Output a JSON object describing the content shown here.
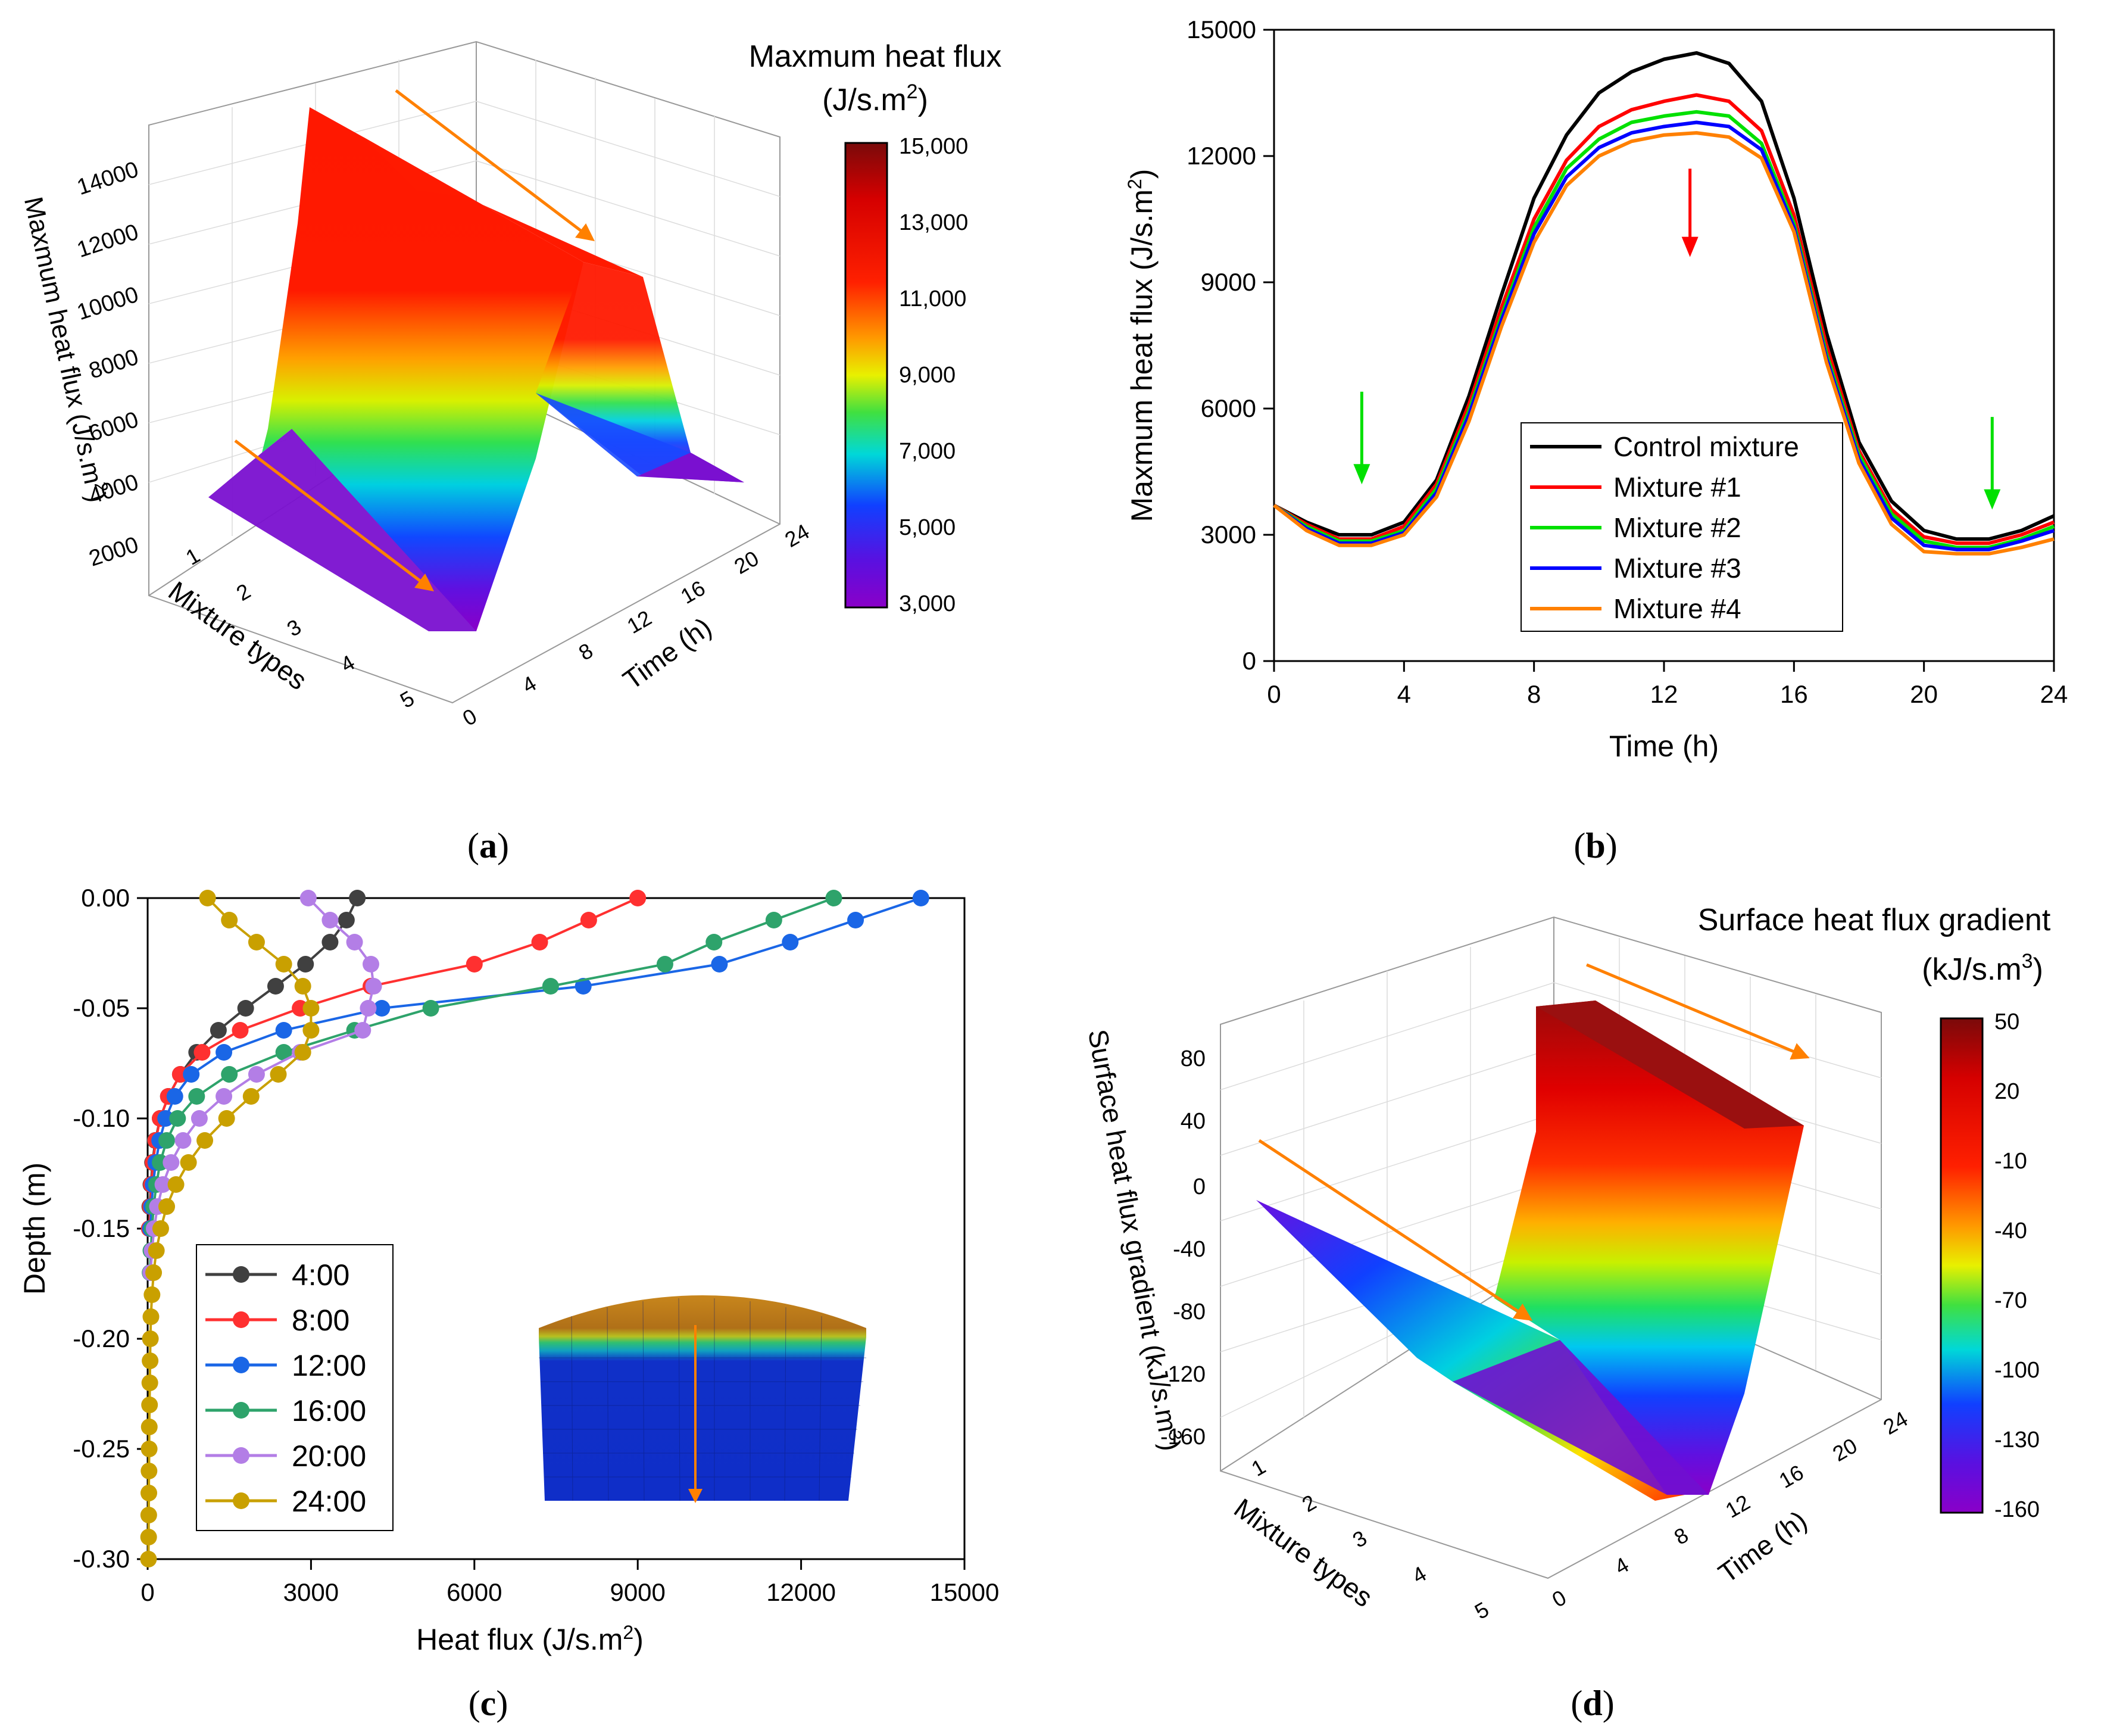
{
  "figure": {
    "captions": {
      "a": "a",
      "b": "b",
      "c": "c",
      "d": "d"
    }
  },
  "chart_data": [
    {
      "panel": "a",
      "type": "surface3d",
      "colorbar_title_line1": "Maxmum heat flux",
      "colorbar_title_line2": "(J/s.m",
      "colorbar_title_sup": "2",
      "colorbar_title_close": ")",
      "colorbar_ticks": [
        "15,000",
        "13,000",
        "11,000",
        "9,000",
        "7,000",
        "5,000",
        "3,000"
      ],
      "colorbar_range": [
        3000,
        15000
      ],
      "zlabel": "Maxmum heat flux (J/s.m",
      "zlabel_sup": "2",
      "zlabel_close": ")",
      "z_ticks": [
        "14000",
        "12000",
        "10000",
        "8000",
        "6000",
        "4000",
        "2000"
      ],
      "x_label": "Mixture types",
      "x_ticks": [
        "1",
        "2",
        "3",
        "4",
        "5"
      ],
      "y_label": "Time (h)",
      "y_ticks": [
        "0",
        "4",
        "8",
        "12",
        "16",
        "20",
        "24"
      ],
      "colors": {
        "arrow": "#ff8000"
      }
    },
    {
      "panel": "b",
      "type": "line",
      "xlabel": "Time (h)",
      "ylabel": "Maxmum heat flux (J/s.m",
      "ylabel_sup": "2",
      "ylabel_close": ")",
      "xlim": [
        0,
        24
      ],
      "ylim": [
        0,
        15000
      ],
      "x_ticks": [
        0,
        4,
        8,
        12,
        16,
        20,
        24
      ],
      "y_ticks": [
        0,
        3000,
        6000,
        9000,
        12000,
        15000
      ],
      "legend_position": "bottom-right",
      "x": [
        0,
        1,
        2,
        3,
        4,
        5,
        6,
        7,
        8,
        9,
        10,
        11,
        12,
        13,
        14,
        15,
        16,
        17,
        18,
        19,
        20,
        21,
        22,
        23,
        24
      ],
      "series": [
        {
          "name": "Control mixture",
          "color": "#000000",
          "values": [
            3700,
            3300,
            3000,
            3000,
            3300,
            4300,
            6300,
            8700,
            11000,
            12500,
            13500,
            14000,
            14300,
            14450,
            14200,
            13300,
            11000,
            7800,
            5200,
            3800,
            3100,
            2900,
            2900,
            3100,
            3450
          ]
        },
        {
          "name": "Mixture #1",
          "color": "#ff0000",
          "values": [
            3700,
            3250,
            2900,
            2900,
            3200,
            4200,
            6100,
            8400,
            10500,
            11900,
            12700,
            13100,
            13300,
            13450,
            13300,
            12600,
            10600,
            7500,
            5000,
            3600,
            2950,
            2800,
            2800,
            3000,
            3300
          ]
        },
        {
          "name": "Mixture #2",
          "color": "#00e000",
          "values": [
            3700,
            3200,
            2850,
            2850,
            3100,
            4100,
            5950,
            8200,
            10300,
            11700,
            12400,
            12800,
            12950,
            13050,
            12950,
            12300,
            10400,
            7300,
            4900,
            3500,
            2850,
            2700,
            2700,
            2900,
            3200
          ]
        },
        {
          "name": "Mixture #3",
          "color": "#0000ff",
          "values": [
            3700,
            3150,
            2800,
            2800,
            3050,
            4000,
            5850,
            8100,
            10150,
            11500,
            12200,
            12550,
            12700,
            12800,
            12700,
            12150,
            10300,
            7200,
            4800,
            3400,
            2750,
            2650,
            2650,
            2850,
            3100
          ]
        },
        {
          "name": "Mixture #4",
          "color": "#ff8000",
          "values": [
            3700,
            3100,
            2750,
            2750,
            3000,
            3900,
            5700,
            7950,
            9950,
            11300,
            12000,
            12350,
            12500,
            12550,
            12450,
            11950,
            10200,
            7100,
            4700,
            3250,
            2600,
            2550,
            2550,
            2700,
            2900
          ]
        }
      ],
      "annotations": [
        {
          "kind": "arrow",
          "color": "#00e000",
          "x": 2.7,
          "y_from": 6400,
          "y_to": 4200
        },
        {
          "kind": "arrow",
          "color": "#ff0000",
          "x": 12.8,
          "y_from": 11700,
          "y_to": 9600
        },
        {
          "kind": "arrow",
          "color": "#00e000",
          "x": 22.1,
          "y_from": 5800,
          "y_to": 3600
        }
      ]
    },
    {
      "panel": "c",
      "type": "line",
      "xlabel": "Heat flux (J/s.m",
      "xlabel_sup": "2",
      "xlabel_close": ")",
      "ylabel": "Depth (m)",
      "xlim": [
        0,
        15000
      ],
      "ylim": [
        -0.3,
        0.0
      ],
      "x_ticks": [
        0,
        3000,
        6000,
        9000,
        12000,
        15000
      ],
      "y_ticks": [
        "0.00",
        "-0.05",
        "-0.10",
        "-0.15",
        "-0.20",
        "-0.25",
        "-0.30"
      ],
      "legend_position": "bottom-left",
      "series": [
        {
          "name": "4:00",
          "color": "#404040",
          "points": [
            [
              3850,
              0.0
            ],
            [
              3650,
              -0.01
            ],
            [
              3350,
              -0.02
            ],
            [
              2900,
              -0.03
            ],
            [
              2350,
              -0.04
            ],
            [
              1800,
              -0.05
            ],
            [
              1300,
              -0.06
            ],
            [
              900,
              -0.07
            ],
            [
              600,
              -0.08
            ],
            [
              380,
              -0.09
            ],
            [
              230,
              -0.1
            ],
            [
              140,
              -0.11
            ],
            [
              90,
              -0.12
            ],
            [
              60,
              -0.13
            ],
            [
              40,
              -0.14
            ],
            [
              30,
              -0.15
            ]
          ]
        },
        {
          "name": "8:00",
          "color": "#ff3030",
          "points": [
            [
              9000,
              0.0
            ],
            [
              8100,
              -0.01
            ],
            [
              7200,
              -0.02
            ],
            [
              6000,
              -0.03
            ],
            [
              4100,
              -0.04
            ],
            [
              2800,
              -0.05
            ],
            [
              1700,
              -0.06
            ],
            [
              1000,
              -0.07
            ],
            [
              600,
              -0.08
            ],
            [
              380,
              -0.09
            ],
            [
              230,
              -0.1
            ],
            [
              150,
              -0.11
            ],
            [
              100,
              -0.12
            ],
            [
              70,
              -0.13
            ],
            [
              50,
              -0.14
            ],
            [
              30,
              -0.15
            ]
          ]
        },
        {
          "name": "12:00",
          "color": "#1a66e6",
          "points": [
            [
              14200,
              0.0
            ],
            [
              13000,
              -0.01
            ],
            [
              11800,
              -0.02
            ],
            [
              10500,
              -0.03
            ],
            [
              8000,
              -0.04
            ],
            [
              4300,
              -0.05
            ],
            [
              2500,
              -0.06
            ],
            [
              1400,
              -0.07
            ],
            [
              800,
              -0.08
            ],
            [
              500,
              -0.09
            ],
            [
              330,
              -0.1
            ],
            [
              220,
              -0.11
            ],
            [
              150,
              -0.12
            ],
            [
              100,
              -0.13
            ],
            [
              70,
              -0.14
            ],
            [
              50,
              -0.15
            ]
          ]
        },
        {
          "name": "16:00",
          "color": "#2ea36b",
          "points": [
            [
              12600,
              0.0
            ],
            [
              11500,
              -0.01
            ],
            [
              10400,
              -0.02
            ],
            [
              9500,
              -0.03
            ],
            [
              7400,
              -0.04
            ],
            [
              5200,
              -0.05
            ],
            [
              3800,
              -0.06
            ],
            [
              2500,
              -0.07
            ],
            [
              1500,
              -0.08
            ],
            [
              900,
              -0.09
            ],
            [
              550,
              -0.1
            ],
            [
              350,
              -0.11
            ],
            [
              230,
              -0.12
            ],
            [
              160,
              -0.13
            ],
            [
              110,
              -0.14
            ],
            [
              80,
              -0.15
            ],
            [
              60,
              -0.16
            ],
            [
              45,
              -0.17
            ]
          ]
        },
        {
          "name": "20:00",
          "color": "#b37ee6",
          "points": [
            [
              2950,
              0.0
            ],
            [
              3350,
              -0.01
            ],
            [
              3800,
              -0.02
            ],
            [
              4100,
              -0.03
            ],
            [
              4150,
              -0.04
            ],
            [
              4050,
              -0.05
            ],
            [
              3950,
              -0.06
            ],
            [
              2800,
              -0.07
            ],
            [
              2000,
              -0.08
            ],
            [
              1400,
              -0.09
            ],
            [
              950,
              -0.1
            ],
            [
              650,
              -0.11
            ],
            [
              430,
              -0.12
            ],
            [
              280,
              -0.13
            ],
            [
              180,
              -0.14
            ],
            [
              120,
              -0.15
            ],
            [
              80,
              -0.16
            ],
            [
              55,
              -0.17
            ]
          ]
        },
        {
          "name": "24:00",
          "color": "#c9a000",
          "points": [
            [
              1100,
              0.0
            ],
            [
              1500,
              -0.01
            ],
            [
              2000,
              -0.02
            ],
            [
              2500,
              -0.03
            ],
            [
              2850,
              -0.04
            ],
            [
              3000,
              -0.05
            ],
            [
              3000,
              -0.06
            ],
            [
              2850,
              -0.07
            ],
            [
              2400,
              -0.08
            ],
            [
              1900,
              -0.09
            ],
            [
              1450,
              -0.1
            ],
            [
              1050,
              -0.11
            ],
            [
              750,
              -0.12
            ],
            [
              520,
              -0.13
            ],
            [
              350,
              -0.14
            ],
            [
              240,
              -0.15
            ],
            [
              160,
              -0.16
            ],
            [
              110,
              -0.17
            ],
            [
              80,
              -0.18
            ],
            [
              60,
              -0.19
            ],
            [
              50,
              -0.2
            ],
            [
              45,
              -0.21
            ],
            [
              40,
              -0.22
            ],
            [
              35,
              -0.23
            ],
            [
              30,
              -0.24
            ],
            [
              28,
              -0.25
            ],
            [
              25,
              -0.26
            ],
            [
              22,
              -0.27
            ],
            [
              20,
              -0.28
            ],
            [
              18,
              -0.29
            ],
            [
              15,
              -0.3
            ]
          ]
        }
      ]
    },
    {
      "panel": "d",
      "type": "surface3d",
      "colorbar_title_line1": "Surface heat flux gradient",
      "colorbar_title_line2": "(kJ/s.m",
      "colorbar_title_sup": "3",
      "colorbar_title_close": ")",
      "colorbar_ticks": [
        "50",
        "20",
        "-10",
        "-40",
        "-70",
        "-100",
        "-130",
        "-160"
      ],
      "colorbar_range": [
        -160,
        50
      ],
      "zlabel": "Surface heat flux gradient (kJ/s.m",
      "zlabel_sup": "3",
      "zlabel_close": ")",
      "z_ticks": [
        "80",
        "40",
        "0",
        "-40",
        "-80",
        "-120",
        "-160"
      ],
      "x_label": "Mixture types",
      "x_ticks": [
        "1",
        "2",
        "3",
        "4",
        "5"
      ],
      "y_label": "Time (h)",
      "y_ticks": [
        "0",
        "4",
        "8",
        "12",
        "16",
        "20",
        "24"
      ],
      "colors": {
        "arrow": "#ff8000"
      }
    }
  ]
}
